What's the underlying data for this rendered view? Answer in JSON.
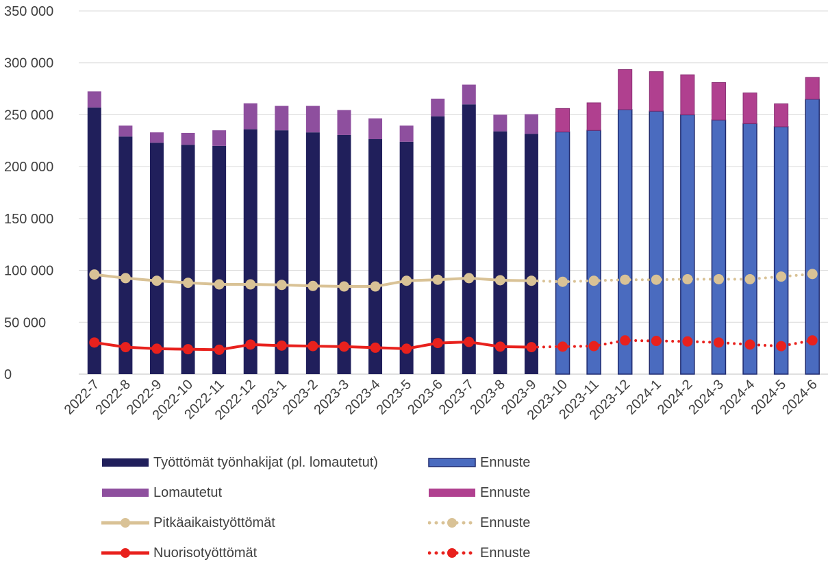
{
  "chart_data": {
    "type": "bar",
    "stacked": true,
    "categories": [
      "2022-7",
      "2022-8",
      "2022-9",
      "2022-10",
      "2022-11",
      "2022-12",
      "2023-1",
      "2023-2",
      "2023-3",
      "2023-4",
      "2023-5",
      "2023-6",
      "2023-7",
      "2023-8",
      "2023-9",
      "2023-10",
      "2023-11",
      "2023-12",
      "2024-1",
      "2024-2",
      "2024-3",
      "2024-4",
      "2024-5",
      "2024-6"
    ],
    "forecast_start_index": 15,
    "ylim": [
      0,
      350000
    ],
    "yticks": [
      0,
      50000,
      100000,
      150000,
      200000,
      250000,
      300000,
      350000
    ],
    "ytick_labels": [
      "0",
      "50 000",
      "100 000",
      "150 000",
      "200 000",
      "250 000",
      "300 000",
      "350 000"
    ],
    "grid": true,
    "legend_position": "bottom",
    "series": [
      {
        "name": "Työttömät työnhakijat (pl. lomautetut)",
        "kind": "bar",
        "color": "#201f5b",
        "values": [
          257000,
          229000,
          223000,
          221000,
          220000,
          236000,
          235000,
          233000,
          230500,
          226500,
          224000,
          248500,
          260000,
          234000,
          231500,
          null,
          null,
          null,
          null,
          null,
          null,
          null,
          null,
          null
        ]
      },
      {
        "name": "Ennuste",
        "kind": "bar",
        "color": "#4a6bbf",
        "border": "#1f2a6e",
        "values": [
          null,
          null,
          null,
          null,
          null,
          null,
          null,
          null,
          null,
          null,
          null,
          null,
          null,
          null,
          null,
          233500,
          235000,
          255000,
          253500,
          250000,
          245000,
          241500,
          238500,
          265000
        ]
      },
      {
        "name": "Lomautetut",
        "kind": "bar",
        "color": "#8e4f9e",
        "values": [
          15500,
          10500,
          10000,
          11500,
          15000,
          25000,
          23500,
          25500,
          24000,
          20000,
          15500,
          17000,
          19000,
          16000,
          19000,
          null,
          null,
          null,
          null,
          null,
          null,
          null,
          null,
          null
        ]
      },
      {
        "name": "Ennuste",
        "kind": "bar",
        "color": "#b0408f",
        "values": [
          null,
          null,
          null,
          null,
          null,
          null,
          null,
          null,
          null,
          null,
          null,
          null,
          null,
          null,
          null,
          22500,
          26500,
          38500,
          38000,
          38500,
          36000,
          29500,
          22000,
          21000
        ]
      },
      {
        "name": "Pitkäaikaistyöttömät",
        "kind": "line",
        "color": "#d9c296",
        "values": [
          96000,
          92500,
          90000,
          88000,
          86500,
          86500,
          86000,
          85000,
          84500,
          84500,
          90000,
          91000,
          92500,
          90500,
          90000,
          null,
          null,
          null,
          null,
          null,
          null,
          null,
          null,
          null
        ]
      },
      {
        "name": "Ennuste",
        "kind": "line-dotted",
        "color": "#d9c296",
        "values": [
          null,
          null,
          null,
          null,
          null,
          null,
          null,
          null,
          null,
          null,
          null,
          null,
          null,
          null,
          90000,
          89000,
          90000,
          91000,
          91000,
          91500,
          91500,
          91500,
          94000,
          96500
        ]
      },
      {
        "name": "Nuorisotyöttömät",
        "kind": "line",
        "color": "#e8211d",
        "values": [
          30500,
          26000,
          24500,
          24000,
          23500,
          28500,
          27500,
          27000,
          26500,
          25500,
          24500,
          30000,
          31000,
          26500,
          26000,
          null,
          null,
          null,
          null,
          null,
          null,
          null,
          null,
          null
        ]
      },
      {
        "name": "Ennuste",
        "kind": "line-dotted",
        "color": "#e8211d",
        "values": [
          null,
          null,
          null,
          null,
          null,
          null,
          null,
          null,
          null,
          null,
          null,
          null,
          null,
          null,
          26000,
          26500,
          27000,
          32500,
          32000,
          31500,
          30500,
          28500,
          27000,
          32500
        ]
      }
    ]
  }
}
